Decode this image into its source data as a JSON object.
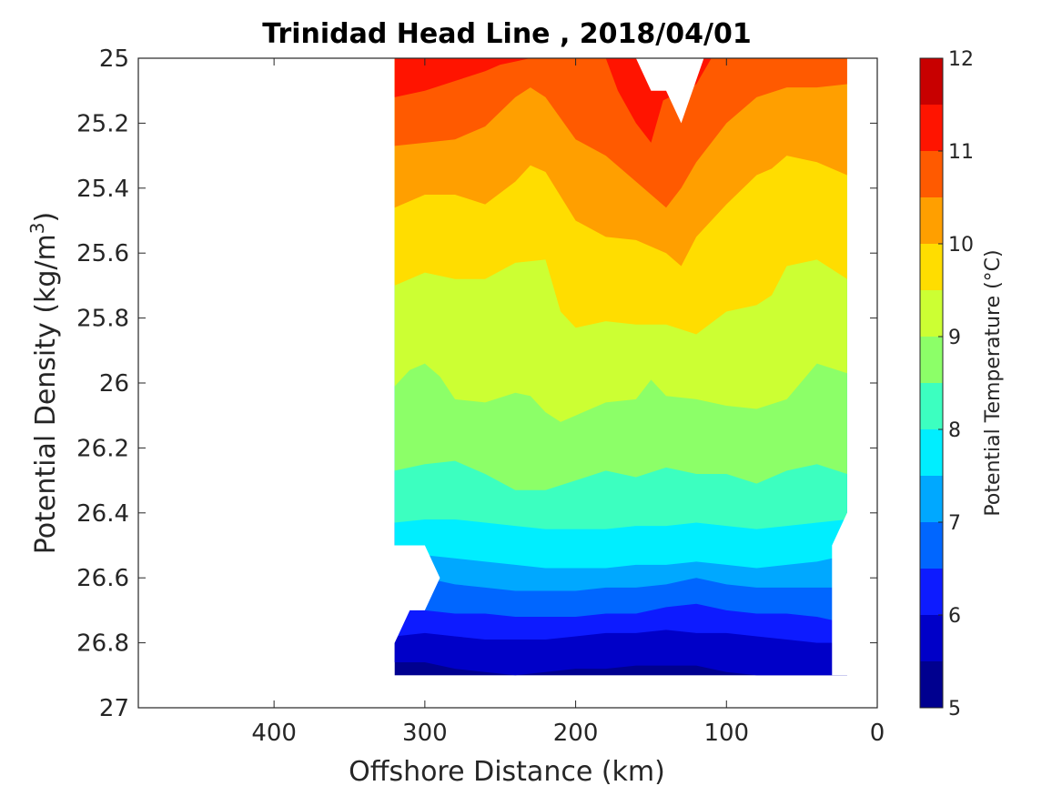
{
  "chart_data": {
    "type": "contour",
    "title": "Trinidad Head Line , 2018/04/01",
    "xlabel": "Offshore Distance (km)",
    "ylabel": "Potential Density (kg/m³)",
    "ylabel_main": "Potential Density (kg/m",
    "ylabel_sup": "3",
    "ylabel_end": ")",
    "colorbar_label": "Potential Temperature (°C)",
    "xlim": [
      490,
      0
    ],
    "x_reversed": true,
    "ylim": [
      25,
      27
    ],
    "y_reversed": true,
    "xticks": [
      400,
      300,
      200,
      100,
      0
    ],
    "yticks": [
      25,
      25.2,
      25.4,
      25.6,
      25.8,
      26,
      26.2,
      26.4,
      26.6,
      26.8,
      27
    ],
    "colorbar_range": [
      5,
      12
    ],
    "colorbar_ticks": [
      5,
      6,
      7,
      8,
      9,
      10,
      11,
      12
    ],
    "contour_levels": [
      5,
      5.5,
      6,
      6.5,
      7,
      7.5,
      8,
      8.5,
      9,
      9.5,
      10,
      10.5,
      11,
      11.5,
      12
    ],
    "colormap": [
      "#00008f",
      "#0000c8",
      "#0d1bff",
      "#0066ff",
      "#00a8ff",
      "#00eeff",
      "#3cffc0",
      "#8cff68",
      "#ccff33",
      "#ffdd00",
      "#ff9f00",
      "#ff5a00",
      "#ff1400",
      "#c80000"
    ],
    "data_domain": {
      "x_range_km": [
        20,
        320
      ],
      "y_range": [
        25,
        26.9
      ]
    },
    "isotherms": [
      {
        "level": 5.5,
        "x": [
          320,
          300,
          280,
          260,
          240,
          220,
          200,
          180,
          160,
          140,
          120,
          100,
          80,
          60,
          40,
          30
        ],
        "y": [
          26.86,
          26.86,
          26.88,
          26.89,
          26.9,
          26.89,
          26.88,
          26.88,
          26.87,
          26.87,
          26.87,
          26.89,
          26.9,
          26.9,
          26.9,
          26.9
        ]
      },
      {
        "level": 6.0,
        "x": [
          320,
          300,
          280,
          260,
          240,
          220,
          200,
          180,
          160,
          140,
          120,
          100,
          80,
          60,
          40,
          30
        ],
        "y": [
          26.78,
          26.77,
          26.78,
          26.79,
          26.79,
          26.79,
          26.78,
          26.77,
          26.77,
          26.76,
          26.77,
          26.77,
          26.78,
          26.79,
          26.8,
          26.8
        ]
      },
      {
        "level": 6.5,
        "x": [
          320,
          300,
          280,
          260,
          240,
          220,
          200,
          180,
          160,
          140,
          120,
          100,
          80,
          60,
          40,
          30
        ],
        "y": [
          26.7,
          26.7,
          26.71,
          26.71,
          26.72,
          26.72,
          26.72,
          26.71,
          26.71,
          26.69,
          26.68,
          26.7,
          26.71,
          26.71,
          26.72,
          26.73
        ]
      },
      {
        "level": 7.0,
        "x": [
          320,
          300,
          280,
          260,
          240,
          220,
          200,
          180,
          160,
          140,
          120,
          100,
          80,
          60,
          40,
          30
        ],
        "y": [
          26.6,
          26.6,
          26.62,
          26.63,
          26.64,
          26.64,
          26.64,
          26.63,
          26.63,
          26.62,
          26.6,
          26.62,
          26.63,
          26.63,
          26.63,
          26.63
        ]
      },
      {
        "level": 7.5,
        "x": [
          320,
          300,
          280,
          260,
          240,
          220,
          200,
          180,
          160,
          140,
          120,
          100,
          80,
          60,
          40,
          30
        ],
        "y": [
          26.52,
          26.53,
          26.54,
          26.55,
          26.56,
          26.57,
          26.57,
          26.57,
          26.56,
          26.56,
          26.55,
          26.56,
          26.57,
          26.56,
          26.55,
          26.54
        ]
      },
      {
        "level": 8.0,
        "x": [
          320,
          300,
          280,
          260,
          240,
          220,
          200,
          180,
          160,
          140,
          120,
          100,
          80,
          60,
          40,
          20
        ],
        "y": [
          26.43,
          26.42,
          26.42,
          26.43,
          26.44,
          26.45,
          26.45,
          26.45,
          26.44,
          26.44,
          26.43,
          26.44,
          26.45,
          26.44,
          26.43,
          26.42
        ]
      },
      {
        "level": 8.5,
        "x": [
          320,
          300,
          280,
          260,
          240,
          220,
          200,
          180,
          160,
          140,
          120,
          100,
          80,
          60,
          40,
          20
        ],
        "y": [
          26.27,
          26.25,
          26.24,
          26.28,
          26.33,
          26.33,
          26.3,
          26.27,
          26.29,
          26.26,
          26.28,
          26.28,
          26.31,
          26.27,
          26.25,
          26.28
        ]
      },
      {
        "level": 9.0,
        "x": [
          320,
          310,
          300,
          290,
          280,
          260,
          240,
          230,
          220,
          210,
          200,
          180,
          160,
          150,
          140,
          120,
          100,
          80,
          60,
          40,
          20
        ],
        "y": [
          26.01,
          25.96,
          25.94,
          25.98,
          26.05,
          26.06,
          26.03,
          26.04,
          26.09,
          26.12,
          26.1,
          26.06,
          26.05,
          25.99,
          26.04,
          26.05,
          26.07,
          26.08,
          26.05,
          25.94,
          25.97
        ]
      },
      {
        "level": 9.5,
        "x": [
          320,
          300,
          280,
          260,
          240,
          220,
          210,
          200,
          180,
          160,
          140,
          120,
          100,
          80,
          70,
          60,
          40,
          20
        ],
        "y": [
          25.7,
          25.66,
          25.68,
          25.68,
          25.63,
          25.62,
          25.78,
          25.83,
          25.81,
          25.82,
          25.82,
          25.85,
          25.78,
          25.76,
          25.73,
          25.64,
          25.62,
          25.68
        ]
      },
      {
        "level": 10.0,
        "x": [
          320,
          300,
          280,
          260,
          240,
          230,
          220,
          200,
          180,
          160,
          140,
          130,
          120,
          100,
          80,
          70,
          60,
          40,
          20
        ],
        "y": [
          25.46,
          25.42,
          25.42,
          25.45,
          25.38,
          25.33,
          25.35,
          25.5,
          25.55,
          25.56,
          25.6,
          25.64,
          25.55,
          25.45,
          25.36,
          25.34,
          25.3,
          25.32,
          25.36
        ]
      },
      {
        "level": 10.5,
        "x": [
          320,
          300,
          280,
          260,
          240,
          230,
          220,
          200,
          180,
          160,
          140,
          130,
          120,
          100,
          80,
          60,
          40,
          20
        ],
        "y": [
          25.27,
          25.26,
          25.25,
          25.21,
          25.12,
          25.09,
          25.12,
          25.25,
          25.3,
          25.38,
          25.46,
          25.4,
          25.32,
          25.2,
          25.12,
          25.09,
          25.09,
          25.08
        ]
      },
      {
        "level": 11.0,
        "x": [
          320,
          300,
          280,
          260,
          250,
          240,
          230
        ],
        "y": [
          25.12,
          25.1,
          25.07,
          25.04,
          25.02,
          25.01,
          25.0
        ]
      }
    ],
    "blank_region_top": {
      "x": [
        130,
        115
      ],
      "y_max": 25.2
    },
    "blank_region_bottom_left": {
      "x_range": [
        290,
        320
      ],
      "y_range": [
        26.5,
        26.9
      ]
    }
  }
}
